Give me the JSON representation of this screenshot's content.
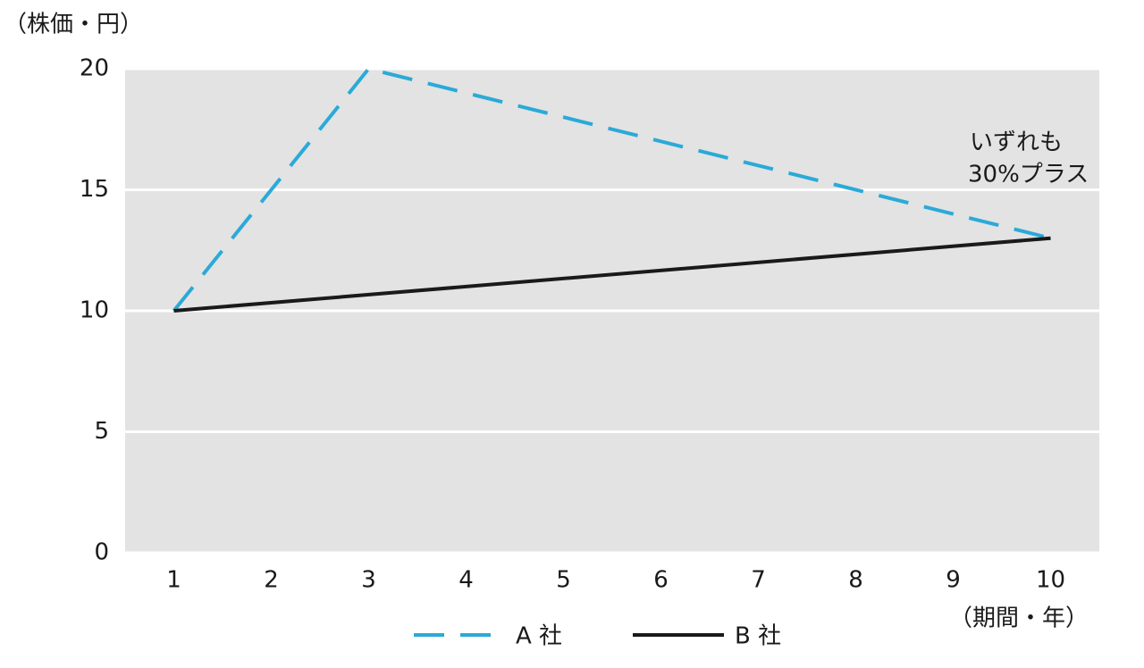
{
  "chart_data": {
    "type": "line",
    "y_label": "（株価・円）",
    "x_label": "（期間・年）",
    "annotation": [
      "いずれも",
      "30%プラス"
    ],
    "xlim": [
      0.5,
      10.5
    ],
    "xticks": [
      1,
      2,
      3,
      4,
      5,
      6,
      7,
      8,
      9,
      10
    ],
    "ylim": [
      0,
      20
    ],
    "yticks": [
      0,
      5,
      10,
      15,
      20
    ],
    "grid": true,
    "series": [
      {
        "name": "A 社",
        "color": "#2aaad8",
        "dashed": true,
        "x": [
          1,
          3,
          10
        ],
        "values": [
          10,
          20,
          13
        ]
      },
      {
        "name": "B 社",
        "color": "#1a1a1a",
        "dashed": false,
        "x": [
          1,
          10
        ],
        "values": [
          10,
          13
        ]
      }
    ]
  }
}
